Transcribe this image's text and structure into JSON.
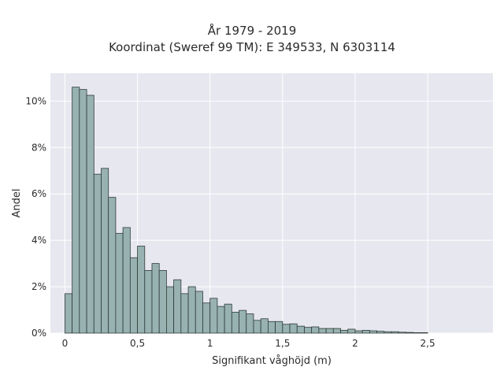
{
  "chart_data": {
    "type": "bar",
    "title": "År 1979 - 2019",
    "subtitle": "Koordinat (Sweref 99 TM): E 349533, N 6303114",
    "xlabel": "Signifikant våghöjd (m)",
    "ylabel": "Andel",
    "xlim": [
      -0.1,
      2.95
    ],
    "ylim": [
      0,
      11.2
    ],
    "grid": true,
    "xticks": [
      {
        "value": 0,
        "label": "0"
      },
      {
        "value": 0.5,
        "label": "0,5"
      },
      {
        "value": 1,
        "label": "1"
      },
      {
        "value": 1.5,
        "label": "1,5"
      },
      {
        "value": 2,
        "label": "2"
      },
      {
        "value": 2.5,
        "label": "2,5"
      }
    ],
    "yticks": [
      {
        "value": 0,
        "label": "0%"
      },
      {
        "value": 2,
        "label": "2%"
      },
      {
        "value": 4,
        "label": "4%"
      },
      {
        "value": 6,
        "label": "6%"
      },
      {
        "value": 8,
        "label": "8%"
      },
      {
        "value": 10,
        "label": "10%"
      }
    ],
    "bin_start": 0.0,
    "bin_width": 0.05,
    "values": [
      1.7,
      10.6,
      10.5,
      10.25,
      6.85,
      7.1,
      5.85,
      4.3,
      4.55,
      3.25,
      3.75,
      2.7,
      3.0,
      2.7,
      2.0,
      2.3,
      1.7,
      2.0,
      1.8,
      1.3,
      1.5,
      1.15,
      1.25,
      0.9,
      0.98,
      0.83,
      0.55,
      0.62,
      0.5,
      0.5,
      0.38,
      0.4,
      0.3,
      0.25,
      0.27,
      0.2,
      0.2,
      0.2,
      0.12,
      0.17,
      0.1,
      0.12,
      0.1,
      0.08,
      0.06,
      0.06,
      0.04,
      0.03,
      0.02,
      0.02
    ],
    "colors": {
      "bar_fill": "#97b2b0",
      "bar_stroke": "#2f3b3a",
      "plot_bg": "#e7e7ef",
      "grid": "#ffffff"
    }
  }
}
